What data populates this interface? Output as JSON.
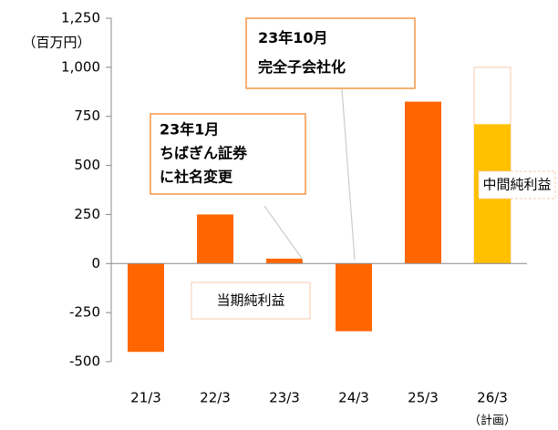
{
  "chart_data": {
    "type": "bar",
    "y_label": "（百万円）",
    "categories": [
      "21/3",
      "22/3",
      "23/3",
      "24/3",
      "25/3",
      "26/3"
    ],
    "category_notes": [
      null,
      null,
      null,
      null,
      null,
      "（計画）"
    ],
    "series": [
      {
        "name": "当期純利益",
        "color": "#ff6600",
        "values": [
          -450,
          250,
          25,
          -345,
          825,
          null
        ]
      },
      {
        "name": "中間純利益",
        "color": "#ffc000",
        "values": [
          null,
          null,
          null,
          null,
          null,
          710
        ]
      }
    ],
    "plan_values": [
      null,
      null,
      null,
      null,
      null,
      1000
    ],
    "plan_color": "#f8cbad",
    "ylim": [
      -500,
      1250
    ],
    "yticks": [
      -500,
      -250,
      0,
      250,
      500,
      750,
      {
        "value": 1000,
        "label": "1,000"
      },
      {
        "value": 1250,
        "label": "1,250"
      }
    ],
    "negative_tick_color": "#ff0000",
    "annotations": [
      {
        "lines": [
          "23年1月",
          "ちばぎん証券",
          "に社名変更"
        ],
        "category": 2
      },
      {
        "lines": [
          "23年10月",
          "完全子会社化"
        ],
        "category": 3
      }
    ]
  }
}
